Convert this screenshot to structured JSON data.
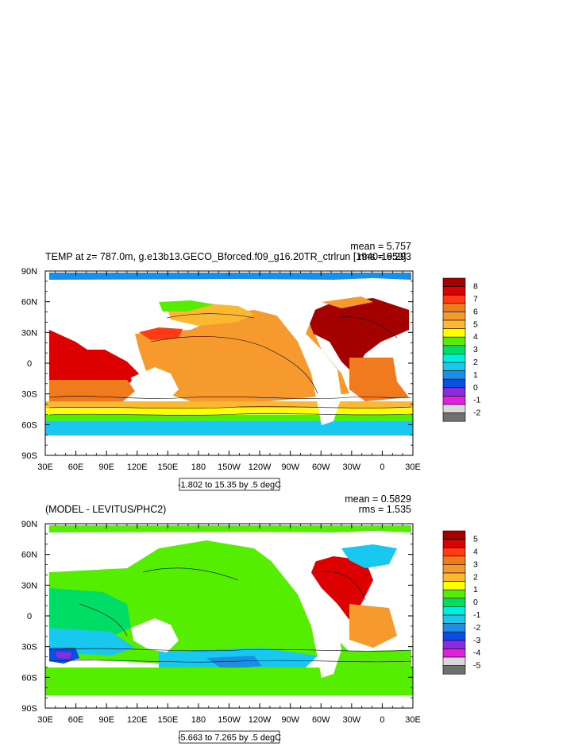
{
  "chart_data": [
    {
      "type": "heatmap",
      "title": "TEMP at z= 787.0m, g.e13b13.GECO_Bforced.f09_g16.20TR_ctrlrun [1940-1959]",
      "stats": {
        "mean": "mean = 5.757",
        "rms": "rms = 6.293"
      },
      "range_label": "-1.802 to 15.35 by .5 degC",
      "x_ticks": [
        "30E",
        "60E",
        "90E",
        "120E",
        "150E",
        "180",
        "150W",
        "120W",
        "90W",
        "60W",
        "30W",
        "0",
        "30E"
      ],
      "y_ticks": [
        "90N",
        "60N",
        "30N",
        "0",
        "30S",
        "60S",
        "90S"
      ],
      "colorbar": {
        "labels": [
          "8",
          "7",
          "6",
          "5",
          "4",
          "3",
          "2",
          "1",
          "0",
          "-1",
          "-2"
        ],
        "colors": [
          "#a50000",
          "#dd0000",
          "#ff3a14",
          "#f07a1e",
          "#f79a2e",
          "#fbb830",
          "#ffff00",
          "#55ee00",
          "#00dd66",
          "#00eedd",
          "#18c8ee",
          "#1a8fe8",
          "#0a4fe0",
          "#8a2be2",
          "#e020e0",
          "#d9d9d9",
          "#707070"
        ]
      },
      "zlim": [
        -2,
        8
      ]
    },
    {
      "type": "heatmap",
      "title": "(MODEL - LEVITUS/PHC2)",
      "stats": {
        "mean": "mean = 0.5829",
        "rms": "rms = 1.535"
      },
      "range_label": "-5.663 to 7.265 by .5 degC",
      "x_ticks": [
        "30E",
        "60E",
        "90E",
        "120E",
        "150E",
        "180",
        "150W",
        "120W",
        "90W",
        "60W",
        "30W",
        "0",
        "30E"
      ],
      "y_ticks": [
        "90N",
        "60N",
        "30N",
        "0",
        "30S",
        "60S",
        "90S"
      ],
      "colorbar": {
        "labels": [
          "5",
          "4",
          "3",
          "2",
          "1",
          "0",
          "-1",
          "-2",
          "-3",
          "-4",
          "-5"
        ],
        "colors": [
          "#a50000",
          "#dd0000",
          "#ff3a14",
          "#f07a1e",
          "#f79a2e",
          "#fbb830",
          "#ffff00",
          "#55ee00",
          "#00dd66",
          "#00eedd",
          "#18c8ee",
          "#1a8fe8",
          "#0a4fe0",
          "#8a2be2",
          "#e020e0",
          "#d9d9d9",
          "#707070"
        ]
      },
      "zlim": [
        -5,
        5
      ]
    }
  ]
}
